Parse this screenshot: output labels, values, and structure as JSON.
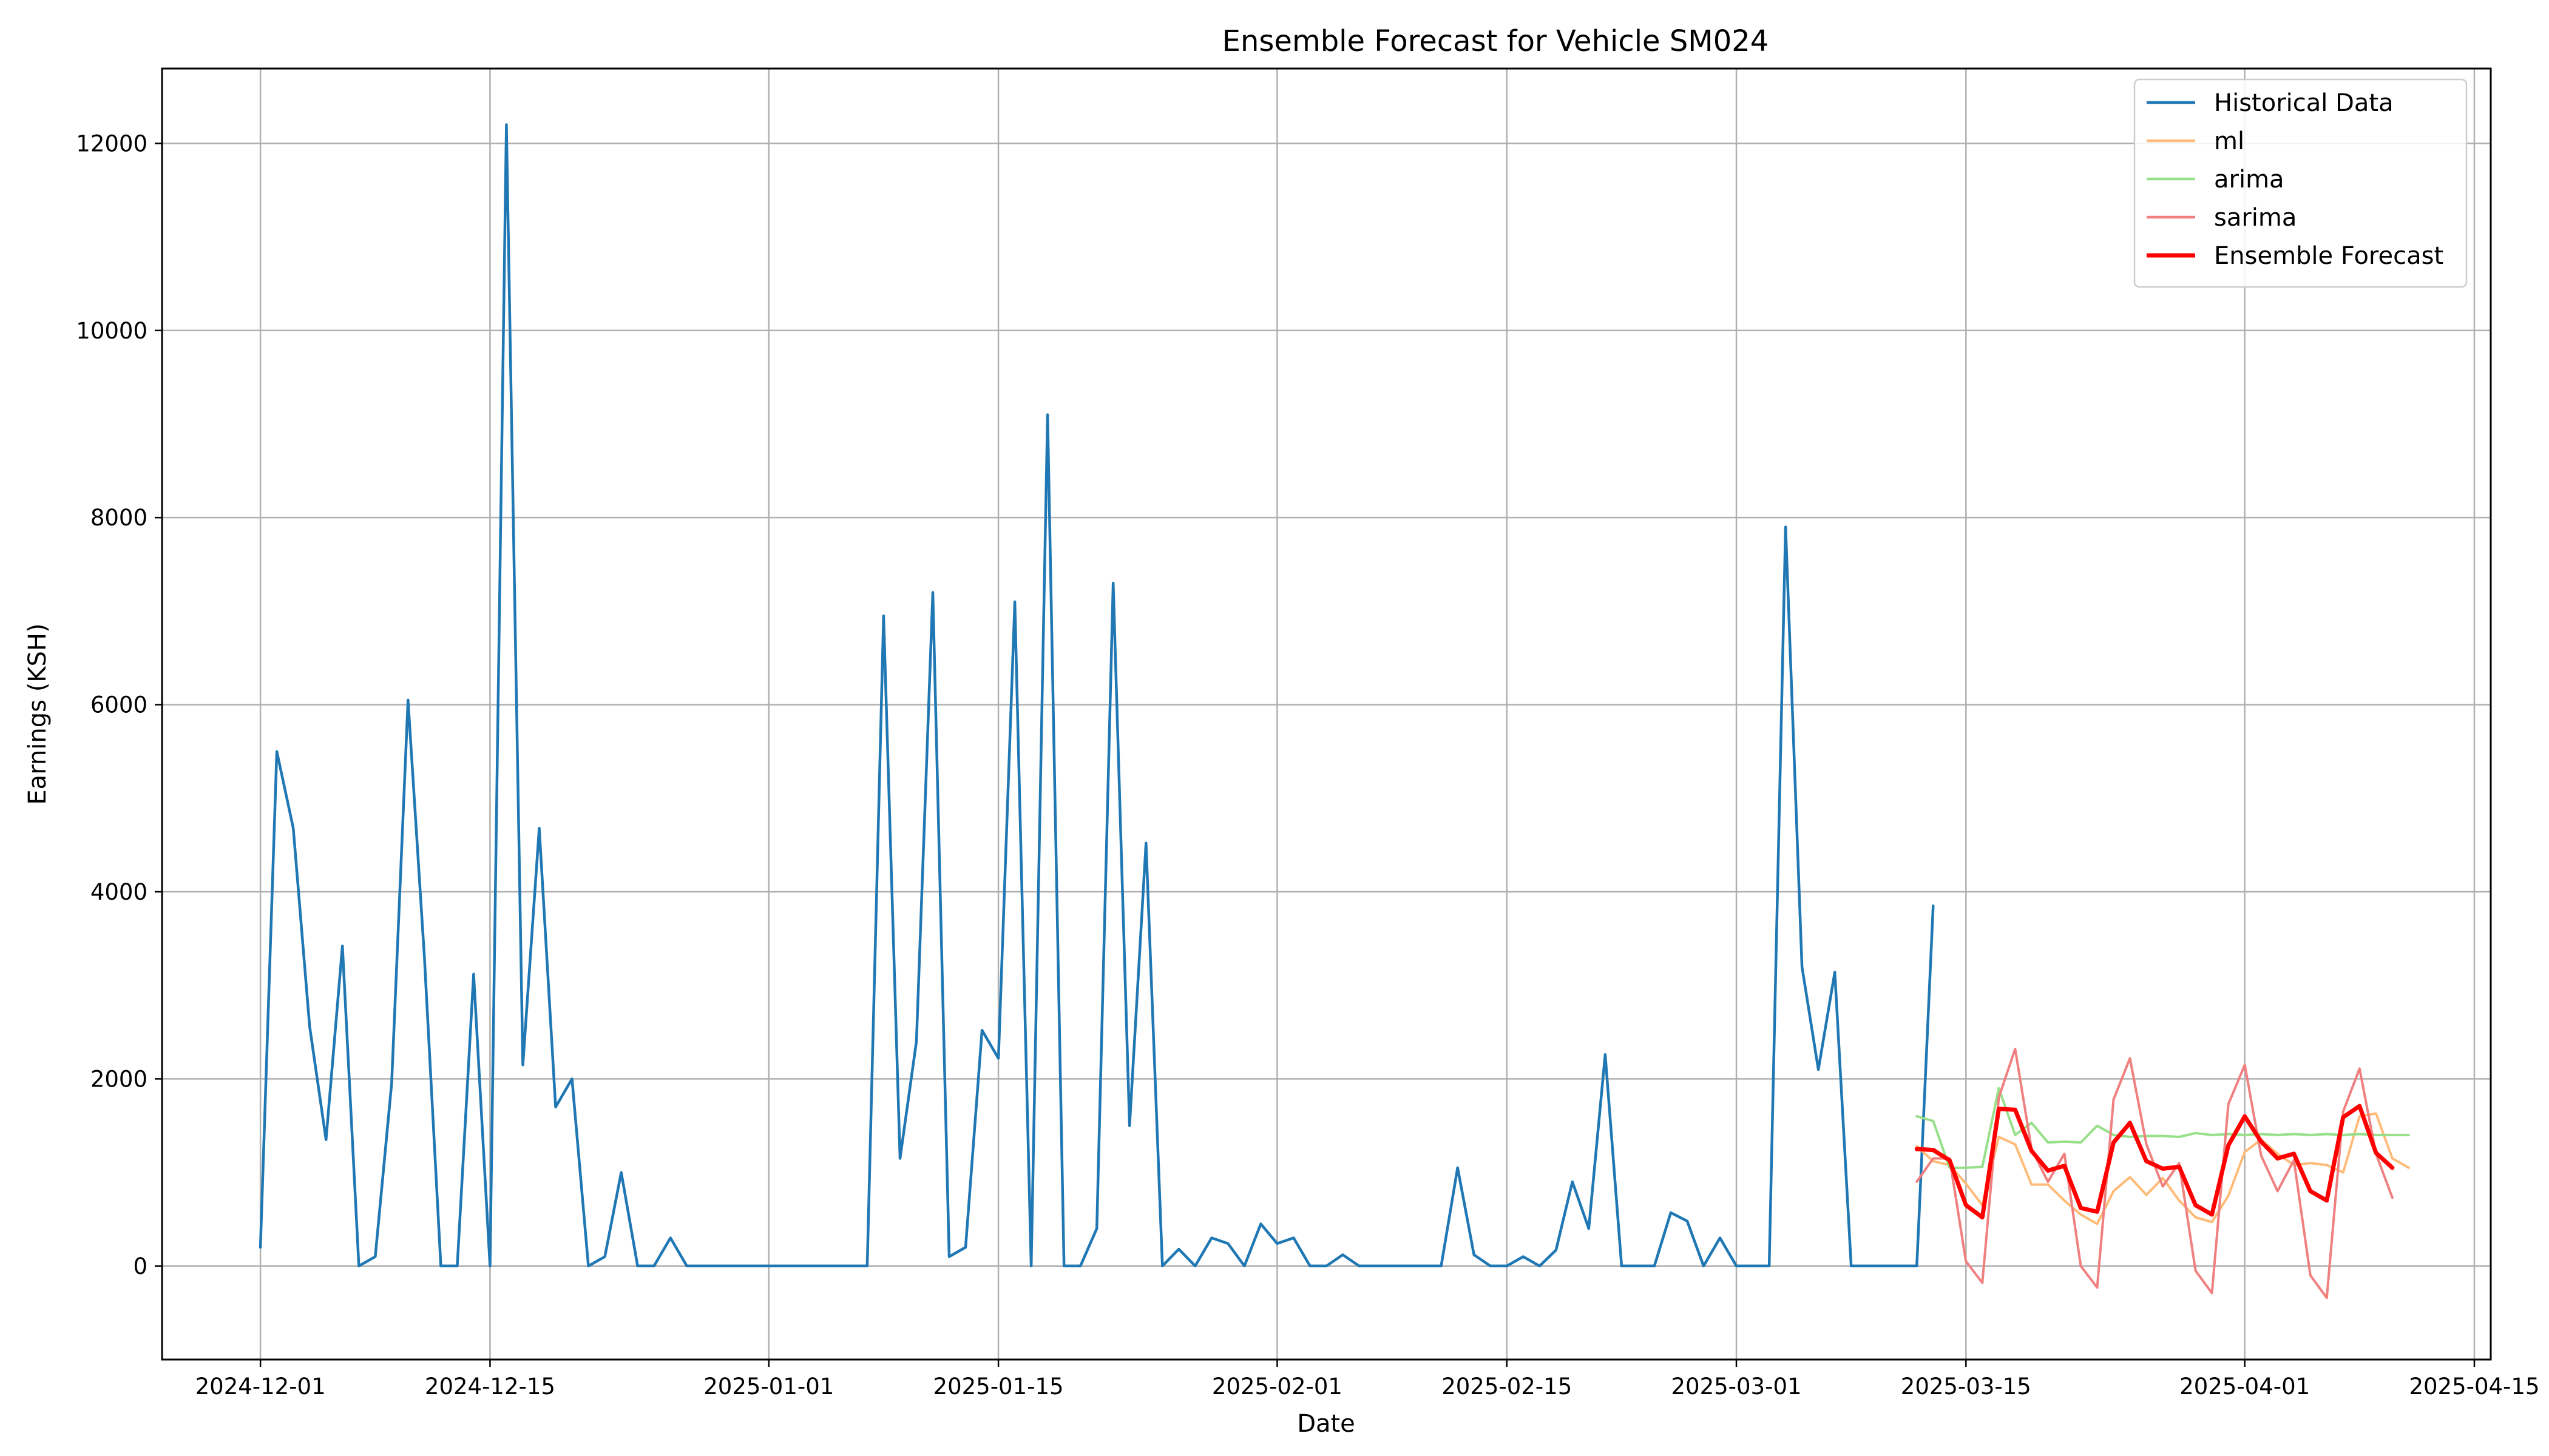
{
  "chart_data": {
    "type": "line",
    "title": "Ensemble Forecast for Vehicle SM024",
    "xlabel": "Date",
    "ylabel": "Earnings (KSH)",
    "xlim": [
      "2024-11-25",
      "2025-04-16"
    ],
    "ylim": [
      -1000,
      12800
    ],
    "grid": true,
    "legend_position": "top-right",
    "x_ticks": [
      "2024-12-01",
      "2024-12-15",
      "2025-01-01",
      "2025-01-15",
      "2025-02-01",
      "2025-02-15",
      "2025-03-01",
      "2025-03-15",
      "2025-04-01",
      "2025-04-15"
    ],
    "y_ticks": [
      0,
      2000,
      4000,
      6000,
      8000,
      10000,
      12000
    ],
    "colors": {
      "historical": "#1f77b4",
      "ml": "#ffbb78",
      "arima": "#98df8a",
      "sarima": "#f08080",
      "ensemble": "#ff0000"
    },
    "series": [
      {
        "name": "Historical Data",
        "style": "solid",
        "start": "2024-12-01",
        "values": [
          200,
          5500,
          4680,
          2560,
          1350,
          3420,
          0,
          100,
          1950,
          6050,
          3300,
          0,
          0,
          3120,
          0,
          12200,
          2150,
          4680,
          1700,
          2000,
          0,
          100,
          1000,
          0,
          0,
          300,
          0,
          0,
          0,
          0,
          0,
          0,
          0,
          0,
          0,
          0,
          0,
          0,
          6950,
          1150,
          2400,
          7200,
          100,
          200,
          2520,
          2220,
          7100,
          0,
          9100,
          0,
          0,
          400,
          7300,
          1500,
          4520,
          0,
          180,
          0,
          300,
          240,
          0,
          450,
          240,
          300,
          0,
          0,
          120,
          0,
          0,
          0,
          0,
          0,
          0,
          1050,
          120,
          0,
          0,
          100,
          0,
          170,
          900,
          400,
          2260,
          0,
          0,
          0,
          570,
          480,
          0,
          300,
          0,
          0,
          0,
          7900,
          3200,
          2100,
          3140,
          0,
          0,
          0,
          0,
          0,
          3850
        ]
      },
      {
        "name": "ml",
        "style": "solid",
        "start": "2025-03-12",
        "values": [
          1280,
          1120,
          1080,
          880,
          650,
          1380,
          1300,
          870,
          870,
          700,
          550,
          450,
          800,
          950,
          760,
          940,
          700,
          520,
          470,
          750,
          1220,
          1350,
          1200,
          1080,
          1100,
          1080,
          1000,
          1600,
          1630,
          1150,
          1050
        ]
      },
      {
        "name": "arima",
        "style": "solid",
        "start": "2025-03-12",
        "values": [
          1600,
          1550,
          1050,
          1050,
          1060,
          1900,
          1400,
          1530,
          1320,
          1330,
          1320,
          1500,
          1400,
          1380,
          1390,
          1390,
          1380,
          1420,
          1400,
          1410,
          1400,
          1410,
          1400,
          1410,
          1400,
          1410,
          1400,
          1410,
          1400,
          1400,
          1400
        ]
      },
      {
        "name": "sarima",
        "style": "solid",
        "start": "2025-03-12",
        "values": [
          900,
          1150,
          1150,
          50,
          -180,
          1800,
          2320,
          1250,
          900,
          1200,
          0,
          -230,
          1780,
          2220,
          1300,
          850,
          1100,
          -50,
          -290,
          1730,
          2150,
          1180,
          800,
          1130,
          -100,
          -340,
          1650,
          2110,
          1200,
          730
        ]
      },
      {
        "name": "Ensemble Forecast",
        "style": "bold",
        "start": "2025-03-12",
        "values": [
          1250,
          1240,
          1130,
          650,
          520,
          1680,
          1670,
          1230,
          1020,
          1070,
          620,
          580,
          1320,
          1530,
          1120,
          1040,
          1060,
          650,
          550,
          1290,
          1600,
          1330,
          1150,
          1200,
          800,
          700,
          1590,
          1710,
          1210,
          1050
        ]
      }
    ]
  }
}
